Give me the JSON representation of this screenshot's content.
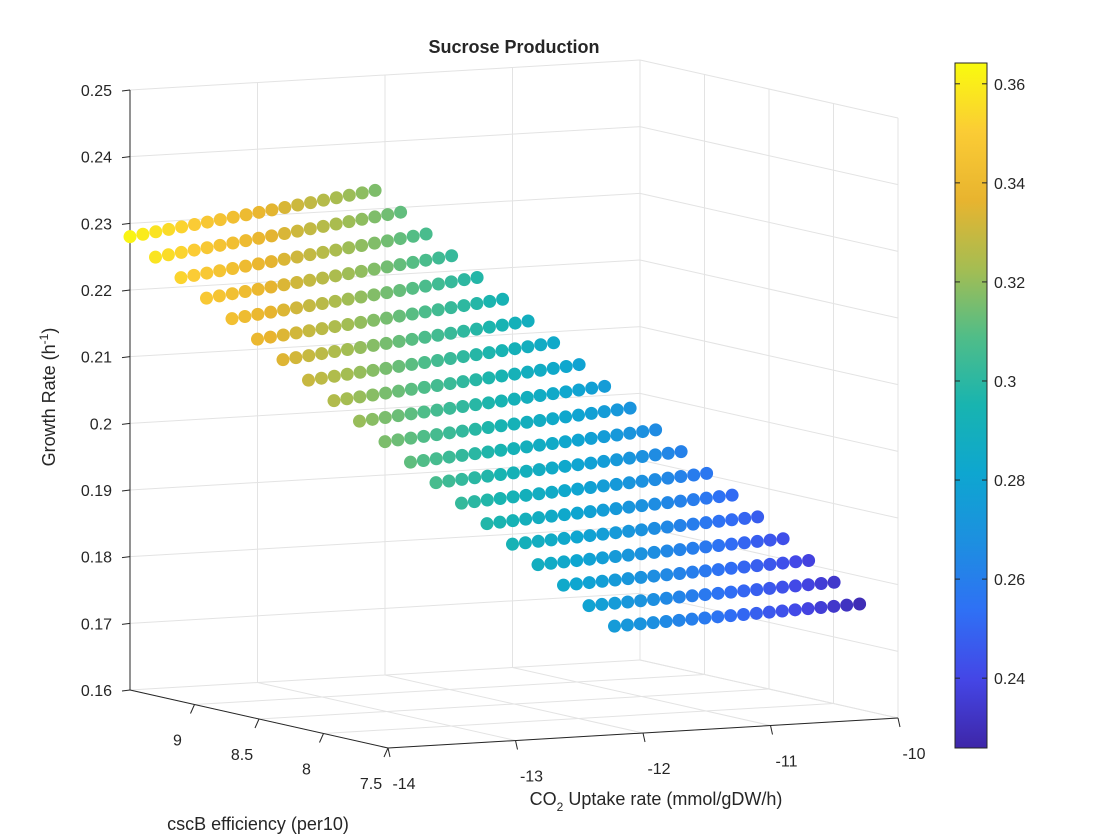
{
  "chart_data": {
    "type": "scatter3",
    "title": "Sucrose Production",
    "xlabel": [
      "CO",
      "2",
      " Uptake rate (mmol/gDW/h)"
    ],
    "ylabel": "cscB efficiency (per10)",
    "zlabel": [
      "Growth Rate (h",
      "-1",
      ")"
    ],
    "xlim": [
      -14,
      -10
    ],
    "xticks": [
      -14,
      -13,
      -12,
      -11,
      -10
    ],
    "ylim": [
      7.5,
      9.5
    ],
    "yticks": [
      7.5,
      8,
      8.5,
      9
    ],
    "zlim": [
      0.16,
      0.25
    ],
    "zticks": [
      0.16,
      0.17,
      0.18,
      0.19,
      0.2,
      0.21,
      0.22,
      0.23,
      0.24,
      0.25
    ],
    "clim": [
      0.2259,
      0.3642
    ],
    "cticks": [
      0.24,
      0.26,
      0.28,
      0.3,
      0.32,
      0.34,
      0.36
    ],
    "colormap": "parula",
    "grid": true,
    "x": [
      -14,
      -13.8,
      -13.6,
      -13.4,
      -13.2,
      -13,
      -12.8,
      -12.6,
      -12.4,
      -12.2,
      -12,
      -11.8,
      -11.6,
      -11.4,
      -11.2,
      -11,
      -10.8,
      -10.6,
      -10.4,
      -10.2
    ],
    "y": [
      9.5,
      9.4,
      9.3,
      9.2,
      9.1,
      9,
      8.9,
      8.8,
      8.7,
      8.6,
      8.5,
      8.4,
      8.3,
      8.2,
      8.1,
      8,
      7.9,
      7.8,
      7.7,
      7.6
    ],
    "z": [
      [
        0.228,
        0.2288,
        0.2296,
        0.2304,
        0.2312,
        0.232,
        0.2328,
        0.2336,
        0.2344,
        0.2352,
        0.236,
        0.2368,
        0.2376,
        0.2384,
        0.2392,
        0.24,
        0.2408,
        0.2416,
        0.2424,
        0.2432
      ],
      [
        0.2247,
        0.22549,
        0.22628,
        0.22707,
        0.22786,
        0.22865,
        0.22944,
        0.23023,
        0.23102,
        0.23181,
        0.2326,
        0.23339,
        0.23418,
        0.23497,
        0.23576,
        0.23655,
        0.23734,
        0.23813,
        0.23892,
        0.23971
      ],
      [
        0.2214,
        0.22218,
        0.22296,
        0.22374,
        0.22452,
        0.2253,
        0.22608,
        0.22686,
        0.22764,
        0.22842,
        0.2292,
        0.22998,
        0.23076,
        0.23154,
        0.23232,
        0.2331,
        0.23388,
        0.23466,
        0.23544,
        0.23622
      ],
      [
        0.2181,
        0.21887,
        0.21964,
        0.22041,
        0.22118,
        0.22195,
        0.22272,
        0.22349,
        0.22426,
        0.22503,
        0.2258,
        0.22657,
        0.22734,
        0.22811,
        0.22888,
        0.22965,
        0.23042,
        0.23119,
        0.23196,
        0.23273
      ],
      [
        0.2148,
        0.21556,
        0.21632,
        0.21708,
        0.21784,
        0.2186,
        0.21936,
        0.22012,
        0.22088,
        0.22164,
        0.2224,
        0.22316,
        0.22392,
        0.22468,
        0.22544,
        0.2262,
        0.22696,
        0.22772,
        0.22848,
        0.22924
      ],
      [
        0.2115,
        0.21225,
        0.213,
        0.21375,
        0.2145,
        0.21525,
        0.216,
        0.21675,
        0.2175,
        0.21825,
        0.219,
        0.21975,
        0.2205,
        0.22125,
        0.222,
        0.22275,
        0.2235,
        0.22425,
        0.225,
        0.22575
      ],
      [
        0.2082,
        0.20894,
        0.20968,
        0.21042,
        0.21116,
        0.2119,
        0.21264,
        0.21338,
        0.21412,
        0.21486,
        0.2156,
        0.21634,
        0.21708,
        0.21782,
        0.21856,
        0.2193,
        0.22004,
        0.22078,
        0.22152,
        0.22226
      ],
      [
        0.2049,
        0.20563,
        0.20636,
        0.20709,
        0.20782,
        0.20855,
        0.20928,
        0.21001,
        0.21074,
        0.21147,
        0.2122,
        0.21293,
        0.21366,
        0.21439,
        0.21512,
        0.21585,
        0.21658,
        0.21731,
        0.21804,
        0.21877
      ],
      [
        0.2016,
        0.20232,
        0.20304,
        0.20376,
        0.20448,
        0.2052,
        0.20592,
        0.20664,
        0.20736,
        0.20808,
        0.2088,
        0.20952,
        0.21024,
        0.21096,
        0.21168,
        0.2124,
        0.21312,
        0.21384,
        0.21456,
        0.21528
      ],
      [
        0.1983,
        0.19901,
        0.19972,
        0.20043,
        0.20114,
        0.20185,
        0.20256,
        0.20327,
        0.20398,
        0.20469,
        0.2054,
        0.20611,
        0.20682,
        0.20753,
        0.20824,
        0.20895,
        0.20966,
        0.21037,
        0.21108,
        0.21179
      ],
      [
        0.195,
        0.1957,
        0.1964,
        0.1971,
        0.1978,
        0.1985,
        0.1992,
        0.1999,
        0.2006,
        0.2013,
        0.202,
        0.2027,
        0.2034,
        0.2041,
        0.2048,
        0.2055,
        0.2062,
        0.2069,
        0.2076,
        0.2083
      ],
      [
        0.1917,
        0.19239,
        0.19308,
        0.19377,
        0.19446,
        0.19515,
        0.19584,
        0.19653,
        0.19722,
        0.19791,
        0.1986,
        0.19929,
        0.19998,
        0.20067,
        0.20136,
        0.20205,
        0.20274,
        0.20343,
        0.20412,
        0.20481
      ],
      [
        0.1884,
        0.18908,
        0.18976,
        0.19044,
        0.19112,
        0.1918,
        0.19248,
        0.19316,
        0.19384,
        0.19452,
        0.1952,
        0.19588,
        0.19656,
        0.19724,
        0.19792,
        0.1986,
        0.19928,
        0.19996,
        0.20064,
        0.20132
      ],
      [
        0.1851,
        0.18577,
        0.18644,
        0.18711,
        0.18778,
        0.18845,
        0.18912,
        0.18979,
        0.19046,
        0.19113,
        0.1918,
        0.19247,
        0.19314,
        0.19381,
        0.19448,
        0.19515,
        0.19582,
        0.19649,
        0.19716,
        0.19783
      ],
      [
        0.1818,
        0.18246,
        0.18312,
        0.18378,
        0.18444,
        0.1851,
        0.18576,
        0.18642,
        0.18708,
        0.18774,
        0.1884,
        0.18906,
        0.18972,
        0.19038,
        0.19104,
        0.1917,
        0.19236,
        0.19302,
        0.19368,
        0.19434
      ],
      [
        0.1785,
        0.17915,
        0.1798,
        0.18045,
        0.1811,
        0.18175,
        0.1824,
        0.18305,
        0.1837,
        0.18435,
        0.185,
        0.18565,
        0.1863,
        0.18695,
        0.1876,
        0.18825,
        0.1889,
        0.18955,
        0.1902,
        0.19085
      ],
      [
        0.1752,
        0.17584,
        0.17648,
        0.17712,
        0.17776,
        0.1784,
        0.17904,
        0.17968,
        0.18032,
        0.18096,
        0.1816,
        0.18224,
        0.18288,
        0.18352,
        0.18416,
        0.1848,
        0.18544,
        0.18608,
        0.18672,
        0.18736
      ],
      [
        0.1719,
        0.17253,
        0.17316,
        0.17379,
        0.17442,
        0.17505,
        0.17568,
        0.17631,
        0.17694,
        0.17757,
        0.1782,
        0.17883,
        0.17946,
        0.18009,
        0.18072,
        0.18135,
        0.18198,
        0.18261,
        0.18324,
        0.18387
      ],
      [
        0.1686,
        0.16922,
        0.16984,
        0.17046,
        0.17108,
        0.1717,
        0.17232,
        0.17294,
        0.17356,
        0.17418,
        0.1748,
        0.17542,
        0.17604,
        0.17666,
        0.17728,
        0.1779,
        0.17852,
        0.17914,
        0.17976,
        0.18038
      ],
      [
        0.1653,
        0.16591,
        0.16652,
        0.16713,
        0.16774,
        0.16835,
        0.16896,
        0.16957,
        0.17018,
        0.17079,
        0.1714,
        0.17201,
        0.17262,
        0.17323,
        0.17384,
        0.17445,
        0.17506,
        0.17567,
        0.17628,
        0.17689
      ]
    ],
    "c": [
      [
        0.362,
        0.3596,
        0.3572,
        0.3548,
        0.3524,
        0.35,
        0.3476,
        0.3452,
        0.3428,
        0.3404,
        0.338,
        0.3356,
        0.3332,
        0.3308,
        0.3284,
        0.326,
        0.3236,
        0.3212,
        0.3188,
        0.3164
      ],
      [
        0.3574,
        0.355,
        0.3526,
        0.3502,
        0.3478,
        0.3454,
        0.343,
        0.3406,
        0.3382,
        0.3358,
        0.3334,
        0.331,
        0.3286,
        0.3262,
        0.3238,
        0.3214,
        0.319,
        0.3166,
        0.3142,
        0.3118
      ],
      [
        0.3528,
        0.3504,
        0.348,
        0.3456,
        0.3432,
        0.3408,
        0.3384,
        0.336,
        0.3336,
        0.3312,
        0.3288,
        0.3264,
        0.324,
        0.3216,
        0.3192,
        0.3168,
        0.3144,
        0.312,
        0.3096,
        0.3072
      ],
      [
        0.3482,
        0.3458,
        0.3434,
        0.341,
        0.3386,
        0.3362,
        0.3338,
        0.3314,
        0.329,
        0.3266,
        0.3242,
        0.3218,
        0.3194,
        0.317,
        0.3146,
        0.3122,
        0.3098,
        0.3074,
        0.305,
        0.3026
      ],
      [
        0.3436,
        0.3412,
        0.3388,
        0.3364,
        0.334,
        0.3316,
        0.3292,
        0.3268,
        0.3244,
        0.322,
        0.3196,
        0.3172,
        0.3148,
        0.3124,
        0.31,
        0.3076,
        0.3052,
        0.3028,
        0.3004,
        0.298
      ],
      [
        0.339,
        0.3366,
        0.3342,
        0.3318,
        0.3294,
        0.327,
        0.3246,
        0.3222,
        0.3198,
        0.3174,
        0.315,
        0.3126,
        0.3102,
        0.3078,
        0.3054,
        0.303,
        0.3006,
        0.2982,
        0.2958,
        0.2934
      ],
      [
        0.3344,
        0.332,
        0.3296,
        0.3272,
        0.3248,
        0.3224,
        0.32,
        0.3176,
        0.3152,
        0.3128,
        0.3104,
        0.308,
        0.3056,
        0.3032,
        0.3008,
        0.2984,
        0.296,
        0.2936,
        0.2912,
        0.2888
      ],
      [
        0.3298,
        0.3274,
        0.325,
        0.3226,
        0.3202,
        0.3178,
        0.3154,
        0.313,
        0.3106,
        0.3082,
        0.3058,
        0.3034,
        0.301,
        0.2986,
        0.2962,
        0.2938,
        0.2914,
        0.289,
        0.2866,
        0.2842
      ],
      [
        0.3252,
        0.3228,
        0.3204,
        0.318,
        0.3156,
        0.3132,
        0.3108,
        0.3084,
        0.306,
        0.3036,
        0.3012,
        0.2988,
        0.2964,
        0.294,
        0.2916,
        0.2892,
        0.2868,
        0.2844,
        0.282,
        0.2796
      ],
      [
        0.3206,
        0.3182,
        0.3158,
        0.3134,
        0.311,
        0.3086,
        0.3062,
        0.3038,
        0.3014,
        0.299,
        0.2966,
        0.2942,
        0.2918,
        0.2894,
        0.287,
        0.2846,
        0.2822,
        0.2798,
        0.2774,
        0.275
      ],
      [
        0.316,
        0.3136,
        0.3112,
        0.3088,
        0.3064,
        0.304,
        0.3016,
        0.2992,
        0.2968,
        0.2944,
        0.292,
        0.2896,
        0.2872,
        0.2848,
        0.2824,
        0.28,
        0.2776,
        0.2752,
        0.2728,
        0.2704
      ],
      [
        0.3114,
        0.309,
        0.3066,
        0.3042,
        0.3018,
        0.2994,
        0.297,
        0.2946,
        0.2922,
        0.2898,
        0.2874,
        0.285,
        0.2826,
        0.2802,
        0.2778,
        0.2754,
        0.273,
        0.2706,
        0.2682,
        0.2658
      ],
      [
        0.3068,
        0.3044,
        0.302,
        0.2996,
        0.2972,
        0.2948,
        0.2924,
        0.29,
        0.2876,
        0.2852,
        0.2828,
        0.2804,
        0.278,
        0.2756,
        0.2732,
        0.2708,
        0.2684,
        0.266,
        0.2636,
        0.2612
      ],
      [
        0.3022,
        0.2998,
        0.2974,
        0.295,
        0.2926,
        0.2902,
        0.2878,
        0.2854,
        0.283,
        0.2806,
        0.2782,
        0.2758,
        0.2734,
        0.271,
        0.2686,
        0.2662,
        0.2638,
        0.2614,
        0.259,
        0.2566
      ],
      [
        0.2976,
        0.2952,
        0.2928,
        0.2904,
        0.288,
        0.2856,
        0.2832,
        0.2808,
        0.2784,
        0.276,
        0.2736,
        0.2712,
        0.2688,
        0.2664,
        0.264,
        0.2616,
        0.2592,
        0.2568,
        0.2544,
        0.252
      ],
      [
        0.293,
        0.2906,
        0.2882,
        0.2858,
        0.2834,
        0.281,
        0.2786,
        0.2762,
        0.2738,
        0.2714,
        0.269,
        0.2666,
        0.2642,
        0.2618,
        0.2594,
        0.257,
        0.2546,
        0.2522,
        0.2498,
        0.2474
      ],
      [
        0.2884,
        0.286,
        0.2836,
        0.2812,
        0.2788,
        0.2764,
        0.274,
        0.2716,
        0.2692,
        0.2668,
        0.2644,
        0.262,
        0.2596,
        0.2572,
        0.2548,
        0.2524,
        0.25,
        0.2476,
        0.2452,
        0.2428
      ],
      [
        0.2838,
        0.2814,
        0.279,
        0.2766,
        0.2742,
        0.2718,
        0.2694,
        0.267,
        0.2646,
        0.2622,
        0.2598,
        0.2574,
        0.255,
        0.2526,
        0.2502,
        0.2478,
        0.2454,
        0.243,
        0.2406,
        0.2382
      ],
      [
        0.2792,
        0.2768,
        0.2744,
        0.272,
        0.2696,
        0.2672,
        0.2648,
        0.2624,
        0.26,
        0.2576,
        0.2552,
        0.2528,
        0.2504,
        0.248,
        0.2456,
        0.2432,
        0.2408,
        0.2384,
        0.236,
        0.2336
      ],
      [
        0.2746,
        0.2722,
        0.2698,
        0.2674,
        0.265,
        0.2626,
        0.2602,
        0.2578,
        0.2554,
        0.253,
        0.2506,
        0.2482,
        0.2458,
        0.2434,
        0.241,
        0.2386,
        0.2362,
        0.2338,
        0.2314,
        0.229
      ]
    ]
  }
}
